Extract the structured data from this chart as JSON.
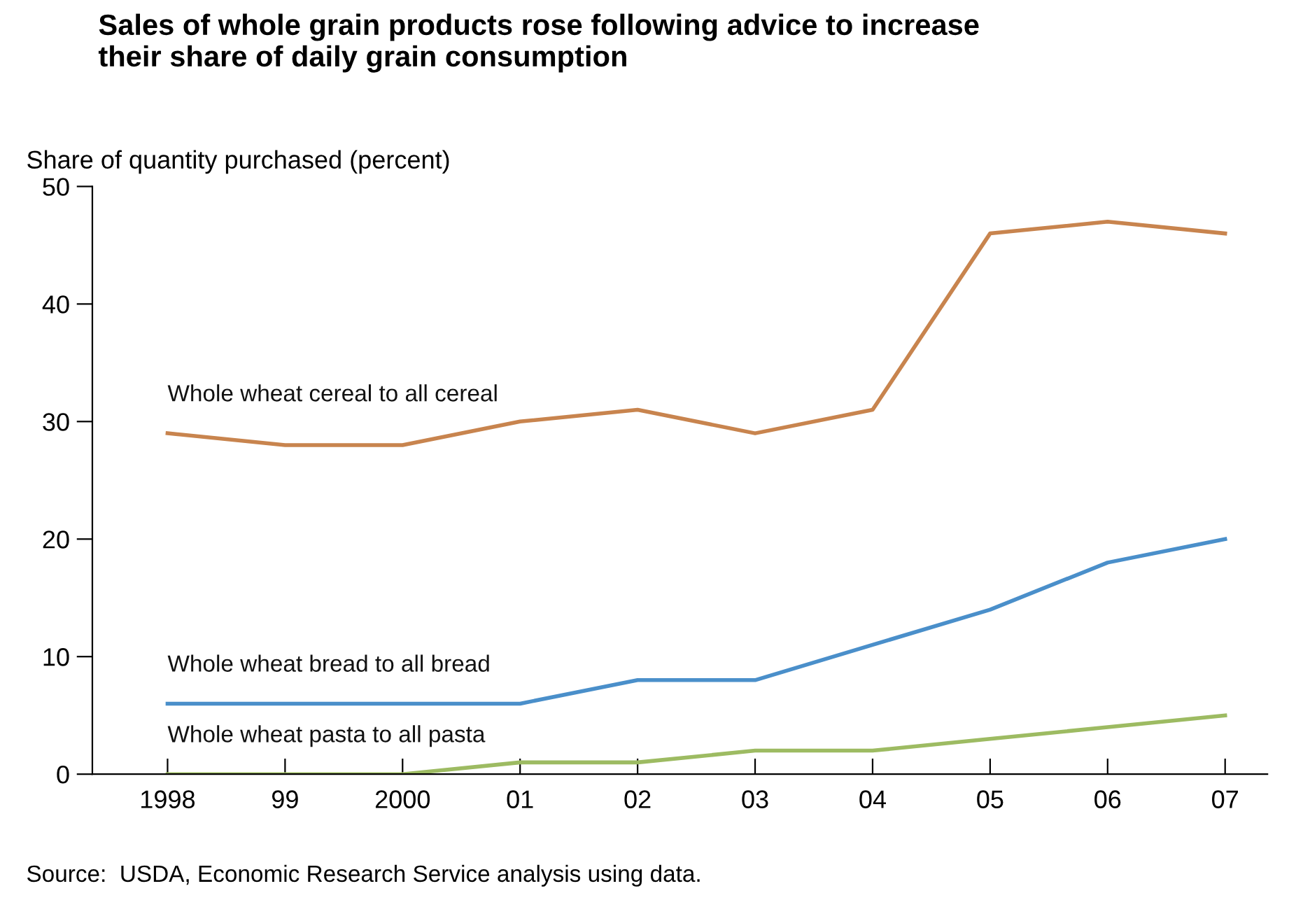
{
  "chart_data": {
    "type": "line",
    "title": "Sales of whole grain products rose following advice to increase\ntheir share of daily grain consumption",
    "ylabel": "Share of quantity purchased (percent)",
    "categories": [
      "1998",
      "99",
      "2000",
      "01",
      "02",
      "03",
      "04",
      "05",
      "06",
      "07"
    ],
    "series": [
      {
        "name": "Whole wheat cereal to all cereal",
        "color": "#c8844e",
        "values": [
          29,
          28,
          28,
          30,
          31,
          29,
          31,
          46,
          47,
          46
        ]
      },
      {
        "name": "Whole wheat bread to all bread",
        "color": "#4a8fca",
        "values": [
          6,
          6,
          6,
          6,
          8,
          8,
          11,
          14,
          18,
          20
        ]
      },
      {
        "name": "Whole wheat pasta to all pasta",
        "color": "#9dbb62",
        "values": [
          0,
          0,
          0,
          1,
          1,
          2,
          2,
          3,
          4,
          5
        ]
      }
    ],
    "ylim": [
      0,
      50
    ],
    "yticks": [
      0,
      10,
      20,
      30,
      40,
      50
    ],
    "grid": false,
    "legend": false,
    "marker": "none",
    "line_style": "solid",
    "annotations": [
      "Source:  USDA, Economic Research Service analysis using data."
    ]
  }
}
